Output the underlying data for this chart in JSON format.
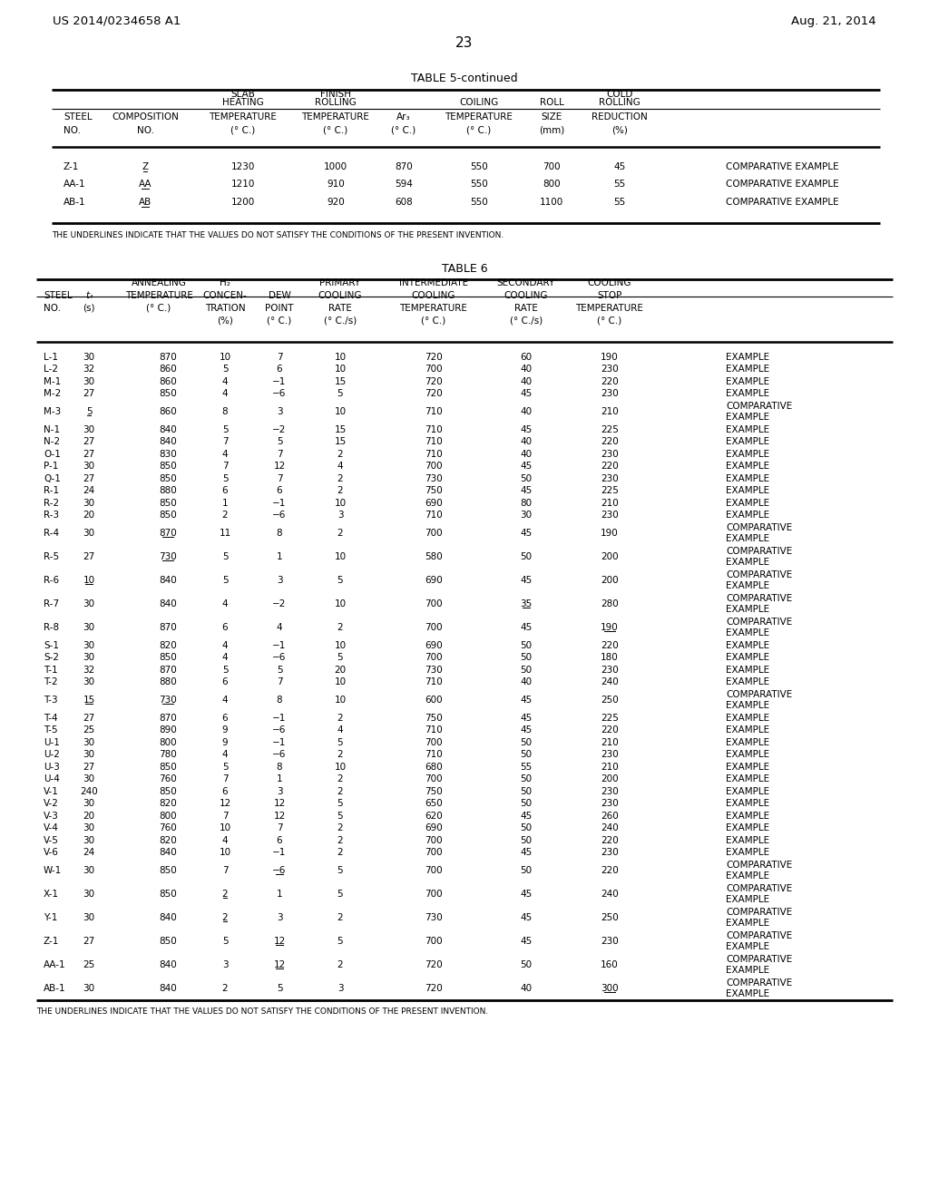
{
  "page_header_left": "US 2014/0234658 A1",
  "page_header_right": "Aug. 21, 2014",
  "page_number": "23",
  "table5_title": "TABLE 5-continued",
  "table5_footnote": "THE UNDERLINES INDICATE THAT THE VALUES DO NOT SATISFY THE CONDITIONS OF THE PRESENT INVENTION.",
  "table5_data": [
    [
      "Z-1",
      "Z",
      "1230",
      "1000",
      "870",
      "550",
      "700",
      "45",
      "COMPARATIVE EXAMPLE"
    ],
    [
      "AA-1",
      "AA",
      "1210",
      "910",
      "594",
      "550",
      "800",
      "55",
      "COMPARATIVE EXAMPLE"
    ],
    [
      "AB-1",
      "AB",
      "1200",
      "920",
      "608",
      "550",
      "1100",
      "55",
      "COMPARATIVE EXAMPLE"
    ]
  ],
  "table5_underline_col1": [
    true,
    true,
    true
  ],
  "table6_title": "TABLE 6",
  "table6_footnote": "THE UNDERLINES INDICATE THAT THE VALUES DO NOT SATISFY THE CONDITIONS OF THE PRESENT INVENTION.",
  "table6_data": [
    [
      "L-1",
      "30",
      "870",
      "10",
      "7",
      "10",
      "720",
      "60",
      "190",
      "EXAMPLE",
      false,
      []
    ],
    [
      "L-2",
      "32",
      "860",
      "5",
      "6",
      "10",
      "700",
      "40",
      "230",
      "EXAMPLE",
      false,
      []
    ],
    [
      "M-1",
      "30",
      "860",
      "4",
      "−1",
      "15",
      "720",
      "40",
      "220",
      "EXAMPLE",
      false,
      []
    ],
    [
      "M-2",
      "27",
      "850",
      "4",
      "−6",
      "5",
      "720",
      "45",
      "230",
      "EXAMPLE",
      false,
      []
    ],
    [
      "M-3",
      "5",
      "860",
      "8",
      "3",
      "10",
      "710",
      "40",
      "210",
      "COMPARATIVE\nEXAMPLE",
      true,
      [
        1
      ]
    ],
    [
      "N-1",
      "30",
      "840",
      "5",
      "−2",
      "15",
      "710",
      "45",
      "225",
      "EXAMPLE",
      false,
      []
    ],
    [
      "N-2",
      "27",
      "840",
      "7",
      "5",
      "15",
      "710",
      "40",
      "220",
      "EXAMPLE",
      false,
      []
    ],
    [
      "O-1",
      "27",
      "830",
      "4",
      "7",
      "2",
      "710",
      "40",
      "230",
      "EXAMPLE",
      false,
      []
    ],
    [
      "P-1",
      "30",
      "850",
      "7",
      "12",
      "4",
      "700",
      "45",
      "220",
      "EXAMPLE",
      false,
      []
    ],
    [
      "Q-1",
      "27",
      "850",
      "5",
      "7",
      "2",
      "730",
      "50",
      "230",
      "EXAMPLE",
      false,
      []
    ],
    [
      "R-1",
      "24",
      "880",
      "6",
      "6",
      "2",
      "750",
      "45",
      "225",
      "EXAMPLE",
      false,
      []
    ],
    [
      "R-2",
      "30",
      "850",
      "1",
      "−1",
      "10",
      "690",
      "80",
      "210",
      "EXAMPLE",
      false,
      []
    ],
    [
      "R-3",
      "20",
      "850",
      "2",
      "−6",
      "3",
      "710",
      "30",
      "230",
      "EXAMPLE",
      false,
      []
    ],
    [
      "R-4",
      "30",
      "870",
      "11",
      "8",
      "2",
      "700",
      "45",
      "190",
      "COMPARATIVE\nEXAMPLE",
      true,
      [
        2
      ]
    ],
    [
      "R-5",
      "27",
      "730",
      "5",
      "1",
      "10",
      "580",
      "50",
      "200",
      "COMPARATIVE\nEXAMPLE",
      true,
      [
        2
      ]
    ],
    [
      "R-6",
      "10",
      "840",
      "5",
      "3",
      "5",
      "690",
      "45",
      "200",
      "COMPARATIVE\nEXAMPLE",
      true,
      [
        1
      ]
    ],
    [
      "R-7",
      "30",
      "840",
      "4",
      "−2",
      "10",
      "700",
      "35",
      "280",
      "COMPARATIVE\nEXAMPLE",
      true,
      [
        7
      ]
    ],
    [
      "R-8",
      "30",
      "870",
      "6",
      "4",
      "2",
      "700",
      "45",
      "190",
      "COMPARATIVE\nEXAMPLE",
      true,
      [
        8
      ]
    ],
    [
      "S-1",
      "30",
      "820",
      "4",
      "−1",
      "10",
      "690",
      "50",
      "220",
      "EXAMPLE",
      false,
      []
    ],
    [
      "S-2",
      "30",
      "850",
      "4",
      "−6",
      "5",
      "700",
      "50",
      "180",
      "EXAMPLE",
      false,
      []
    ],
    [
      "T-1",
      "32",
      "870",
      "5",
      "5",
      "20",
      "730",
      "50",
      "230",
      "EXAMPLE",
      false,
      []
    ],
    [
      "T-2",
      "30",
      "880",
      "6",
      "7",
      "10",
      "710",
      "40",
      "240",
      "EXAMPLE",
      false,
      []
    ],
    [
      "T-3",
      "15",
      "730",
      "4",
      "8",
      "10",
      "600",
      "45",
      "250",
      "COMPARATIVE\nEXAMPLE",
      true,
      [
        1,
        2
      ]
    ],
    [
      "T-4",
      "27",
      "870",
      "6",
      "−1",
      "2",
      "750",
      "45",
      "225",
      "EXAMPLE",
      false,
      []
    ],
    [
      "T-5",
      "25",
      "890",
      "9",
      "−6",
      "4",
      "710",
      "45",
      "220",
      "EXAMPLE",
      false,
      []
    ],
    [
      "U-1",
      "30",
      "800",
      "9",
      "−1",
      "5",
      "700",
      "50",
      "210",
      "EXAMPLE",
      false,
      []
    ],
    [
      "U-2",
      "30",
      "780",
      "4",
      "−6",
      "2",
      "710",
      "50",
      "230",
      "EXAMPLE",
      false,
      []
    ],
    [
      "U-3",
      "27",
      "850",
      "5",
      "8",
      "10",
      "680",
      "55",
      "210",
      "EXAMPLE",
      false,
      []
    ],
    [
      "U-4",
      "30",
      "760",
      "7",
      "1",
      "2",
      "700",
      "50",
      "200",
      "EXAMPLE",
      false,
      []
    ],
    [
      "V-1",
      "240",
      "850",
      "6",
      "3",
      "2",
      "750",
      "50",
      "230",
      "EXAMPLE",
      false,
      []
    ],
    [
      "V-2",
      "30",
      "820",
      "12",
      "12",
      "5",
      "650",
      "50",
      "230",
      "EXAMPLE",
      false,
      []
    ],
    [
      "V-3",
      "20",
      "800",
      "7",
      "12",
      "5",
      "620",
      "45",
      "260",
      "EXAMPLE",
      false,
      []
    ],
    [
      "V-4",
      "30",
      "760",
      "10",
      "7",
      "2",
      "690",
      "50",
      "240",
      "EXAMPLE",
      false,
      []
    ],
    [
      "V-5",
      "30",
      "820",
      "4",
      "6",
      "2",
      "700",
      "50",
      "220",
      "EXAMPLE",
      false,
      []
    ],
    [
      "V-6",
      "24",
      "840",
      "10",
      "−1",
      "2",
      "700",
      "45",
      "230",
      "EXAMPLE",
      false,
      []
    ],
    [
      "W-1",
      "30",
      "850",
      "7",
      "−6",
      "5",
      "700",
      "50",
      "220",
      "COMPARATIVE\nEXAMPLE",
      true,
      [
        4
      ]
    ],
    [
      "X-1",
      "30",
      "850",
      "2",
      "1",
      "5",
      "700",
      "45",
      "240",
      "COMPARATIVE\nEXAMPLE",
      true,
      [
        3
      ]
    ],
    [
      "Y-1",
      "30",
      "840",
      "2",
      "3",
      "2",
      "730",
      "45",
      "250",
      "COMPARATIVE\nEXAMPLE",
      true,
      [
        3
      ]
    ],
    [
      "Z-1",
      "27",
      "850",
      "5",
      "12",
      "5",
      "700",
      "45",
      "230",
      "COMPARATIVE\nEXAMPLE",
      true,
      [
        4
      ]
    ],
    [
      "AA-1",
      "25",
      "840",
      "3",
      "12",
      "2",
      "720",
      "50",
      "160",
      "COMPARATIVE\nEXAMPLE",
      true,
      [
        4
      ]
    ],
    [
      "AB-1",
      "30",
      "840",
      "2",
      "5",
      "3",
      "720",
      "40",
      "300",
      "COMPARATIVE\nEXAMPLE",
      true,
      [
        8
      ]
    ]
  ]
}
